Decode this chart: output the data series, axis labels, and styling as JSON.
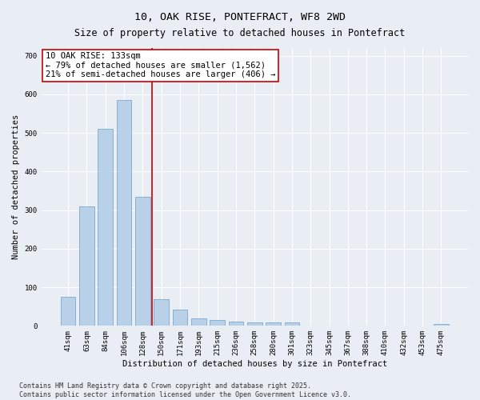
{
  "title": "10, OAK RISE, PONTEFRACT, WF8 2WD",
  "subtitle": "Size of property relative to detached houses in Pontefract",
  "xlabel": "Distribution of detached houses by size in Pontefract",
  "ylabel": "Number of detached properties",
  "categories": [
    "41sqm",
    "63sqm",
    "84sqm",
    "106sqm",
    "128sqm",
    "150sqm",
    "171sqm",
    "193sqm",
    "215sqm",
    "236sqm",
    "258sqm",
    "280sqm",
    "301sqm",
    "323sqm",
    "345sqm",
    "367sqm",
    "388sqm",
    "410sqm",
    "432sqm",
    "453sqm",
    "475sqm"
  ],
  "values": [
    75,
    310,
    510,
    585,
    335,
    70,
    42,
    20,
    15,
    12,
    10,
    10,
    8,
    0,
    0,
    0,
    0,
    0,
    0,
    0,
    5
  ],
  "bar_color": "#b8d0e8",
  "bar_edgecolor": "#7aaad0",
  "bar_linewidth": 0.6,
  "vline_x": 4.5,
  "vline_color": "#cc0000",
  "ylim": [
    0,
    720
  ],
  "yticks": [
    0,
    100,
    200,
    300,
    400,
    500,
    600,
    700
  ],
  "annotation_text": "10 OAK RISE: 133sqm\n← 79% of detached houses are smaller (1,562)\n21% of semi-detached houses are larger (406) →",
  "footer_text": "Contains HM Land Registry data © Crown copyright and database right 2025.\nContains public sector information licensed under the Open Government Licence v3.0.",
  "bg_color": "#e8eef4",
  "grid_color": "#ffffff",
  "title_fontsize": 9.5,
  "subtitle_fontsize": 8.5,
  "axis_label_fontsize": 7.5,
  "tick_fontsize": 6.5,
  "annotation_fontsize": 7.5,
  "footer_fontsize": 6.0
}
